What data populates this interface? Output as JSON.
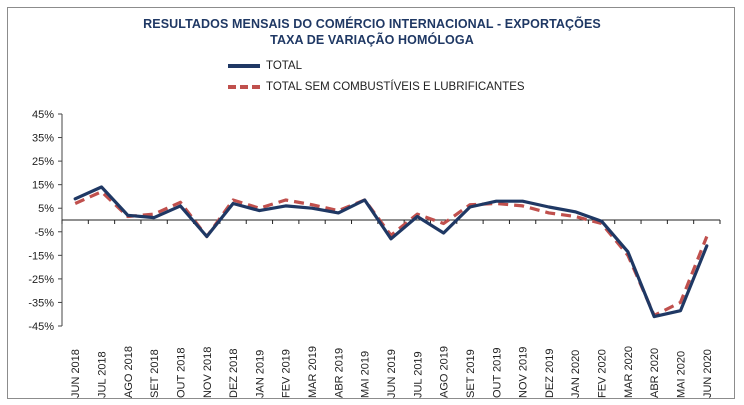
{
  "chart_data": {
    "type": "line",
    "title": "RESULTADOS MENSAIS DO COMÉRCIO INTERNACIONAL  - EXPORTAÇÕES",
    "subtitle": "TAXA DE VARIAÇÃO HOMÓLOGA",
    "xlabel": "",
    "ylabel": "",
    "ylim": [
      -45,
      45
    ],
    "yticks": [
      "45%",
      "35%",
      "25%",
      "15%",
      "5%",
      "-5%",
      "-15%",
      "-25%",
      "-35%",
      "-45%"
    ],
    "ytick_values": [
      45,
      35,
      25,
      15,
      5,
      -5,
      -15,
      -25,
      -35,
      -45
    ],
    "grid": false,
    "legend_position": "top-center",
    "categories": [
      "JUN 2018",
      "JUL 2018",
      "AGO 2018",
      "SET 2018",
      "OUT 2018",
      "NOV 2018",
      "DEZ 2018",
      "JAN 2019",
      "FEV 2019",
      "MAR 2019",
      "ABR 2019",
      "MAI 2019",
      "JUN 2019",
      "JUL 2019",
      "AGO 2019",
      "SET 2019",
      "OUT 2019",
      "NOV 2019",
      "DEZ 2019",
      "JAN 2020",
      "FEV 2020",
      "MAR 2020",
      "ABR 2020",
      "MAI 2020",
      "JUN 2020"
    ],
    "series": [
      {
        "name": "TOTAL",
        "color": "#1f3864",
        "style": "solid",
        "values": [
          9,
          14,
          2,
          1,
          6,
          -7,
          7,
          4,
          6,
          5,
          3,
          8.5,
          -8,
          1.5,
          -5.5,
          5.5,
          8,
          8,
          5.5,
          3.5,
          -0.5,
          -13.5,
          -41,
          -38.5,
          -11
        ]
      },
      {
        "name": "TOTAL SEM COMBUSTÍVEIS E LUBRIFICANTES",
        "color": "#c0504d",
        "style": "dashed",
        "values": [
          7,
          12,
          1.5,
          2.5,
          7.5,
          -7,
          8.5,
          5,
          8.5,
          6.5,
          4,
          8.5,
          -6.5,
          2.5,
          -1.5,
          6.5,
          7,
          6,
          3,
          1.5,
          -1.5,
          -15,
          -40.5,
          -35,
          -7
        ]
      }
    ]
  }
}
